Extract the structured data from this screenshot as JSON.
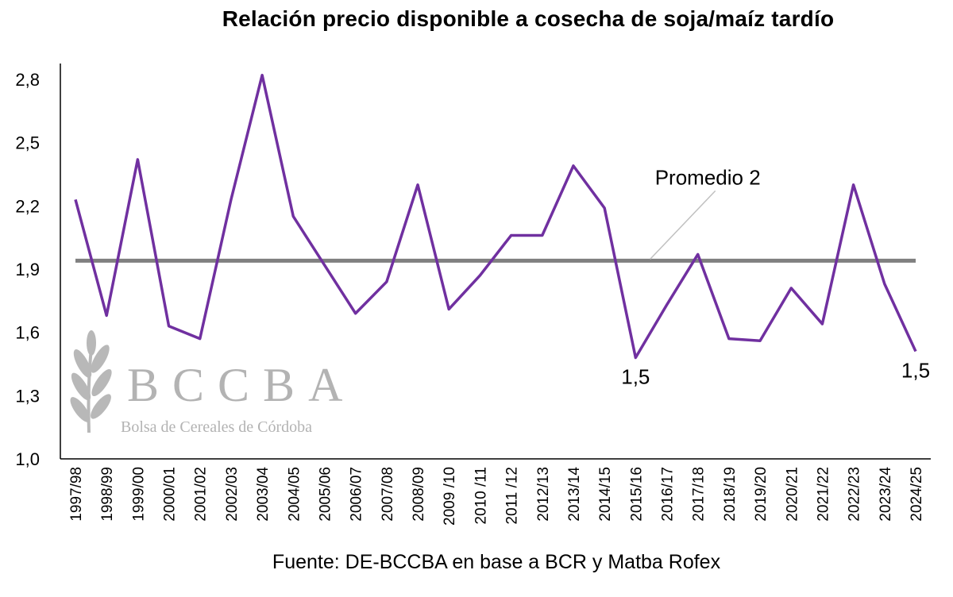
{
  "chart_data": {
    "type": "line",
    "title": "Relación precio disponible a cosecha de  soja/maíz tardío",
    "categories": [
      "1997/98",
      "1998/99",
      "1999/00",
      "2000/01",
      "2001/02",
      "2002/03",
      "2003/04",
      "2004/05",
      "2005/06",
      "2006/07",
      "2007/08",
      "2008/09",
      "2009 /10",
      "2010 /11",
      "2011 /12",
      "2012/13",
      "2013/14",
      "2014/15",
      "2015/16",
      "2016/17",
      "2017/18",
      "2018/19",
      "2019/20",
      "2020/21",
      "2021/22",
      "2022/23",
      "2023/24",
      "2024/25"
    ],
    "series": [
      {
        "values": [
          2.23,
          1.68,
          2.42,
          1.63,
          1.57,
          2.23,
          2.82,
          2.15,
          1.92,
          1.69,
          1.84,
          2.3,
          1.71,
          1.87,
          2.06,
          2.06,
          2.39,
          2.19,
          1.48,
          1.73,
          1.97,
          1.57,
          1.56,
          1.81,
          1.64,
          2.3,
          1.83,
          1.51
        ],
        "color": "#7030a0"
      },
      {
        "values": [
          1.94,
          1.94,
          1.94,
          1.94,
          1.94,
          1.94,
          1.94,
          1.94,
          1.94,
          1.94,
          1.94,
          1.94,
          1.94,
          1.94,
          1.94,
          1.94,
          1.94,
          1.94,
          1.94,
          1.94,
          1.94,
          1.94,
          1.94,
          1.94,
          1.94,
          1.94,
          1.94,
          1.94
        ],
        "color": "#808080"
      }
    ],
    "yticks": [
      "1,0",
      "1,3",
      "1,6",
      "1,9",
      "2,2",
      "2,5",
      "2,8"
    ],
    "ylim": [
      1.0,
      2.8
    ],
    "annotations": [
      {
        "text": "1,5",
        "category": "2015/16"
      },
      {
        "text": "1,5",
        "category": "2024/25"
      },
      {
        "text": "Promedio 2",
        "category": "2017/18"
      }
    ],
    "grid": false,
    "legend": "none"
  },
  "logo": {
    "initials": "BCCBA",
    "name": "Bolsa de Cereales de Córdoba"
  },
  "source": "Fuente: DE-BCCBA en base a BCR y Matba Rofex"
}
